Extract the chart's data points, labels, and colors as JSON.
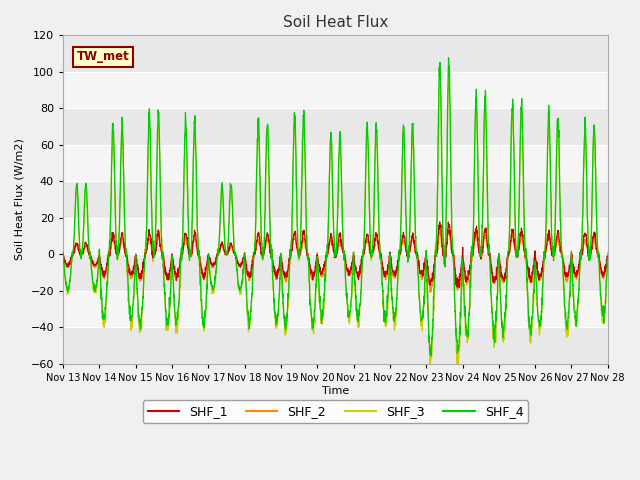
{
  "title": "Soil Heat Flux",
  "ylabel": "Soil Heat Flux (W/m2)",
  "xlabel": "Time",
  "ylim": [
    -60,
    120
  ],
  "yticks": [
    -60,
    -40,
    -20,
    0,
    20,
    40,
    60,
    80,
    100,
    120
  ],
  "colors": {
    "SHF_1": "#cc0000",
    "SHF_2": "#ff8800",
    "SHF_3": "#cccc00",
    "SHF_4": "#00cc00"
  },
  "legend_label": "TW_met",
  "legend_bg": "#ffffcc",
  "legend_border": "#8b0000",
  "n_days": 15,
  "start_day": 13,
  "points_per_day": 144,
  "band_color": "#e8e8e8",
  "plot_bg": "#f5f5f5",
  "fig_bg": "#f0f0f0"
}
